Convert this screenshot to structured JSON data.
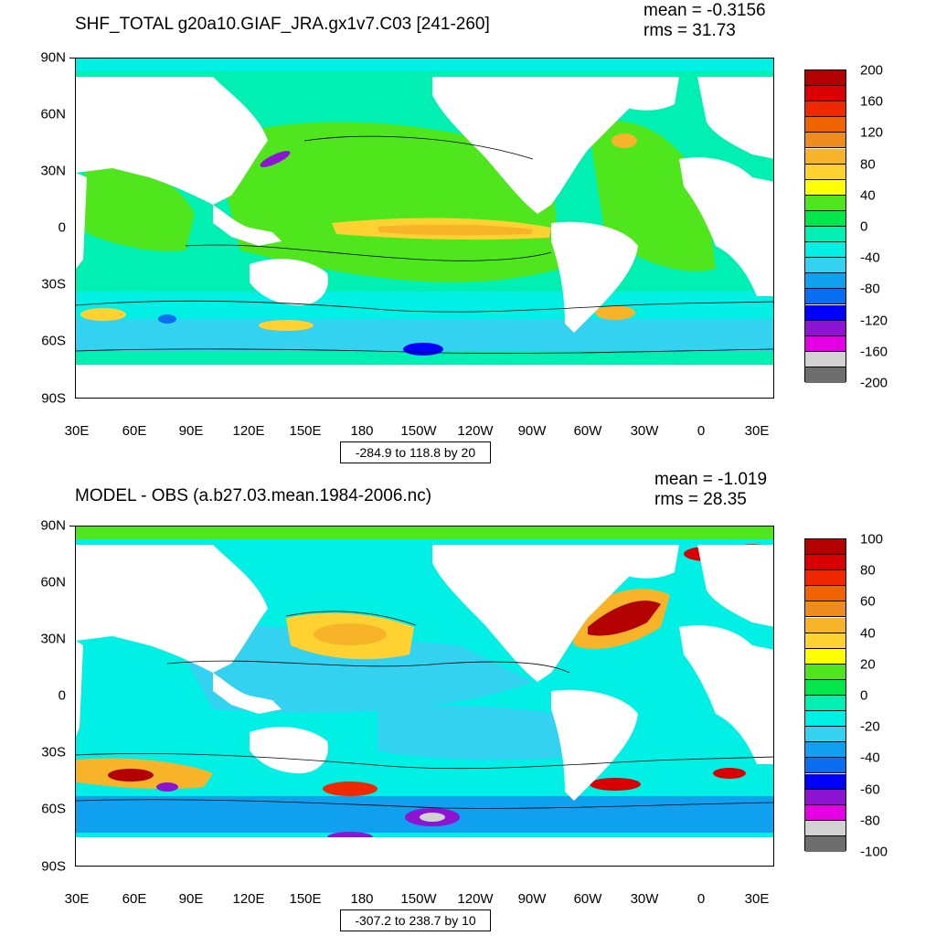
{
  "panels": [
    {
      "title": "SHF_TOTAL g20a10.GIAF_JRA.gx1v7.C03 [241-260]",
      "mean": "mean = -0.3156",
      "rms": "rms = 31.73",
      "range_text": "-284.9 to 118.8 by 20",
      "colorbar_labels": [
        "200",
        "160",
        "120",
        "80",
        "40",
        "0",
        "-40",
        "-80",
        "-120",
        "-160",
        "-200"
      ]
    },
    {
      "title": "MODEL - OBS (a.b27.03.mean.1984-2006.nc)",
      "mean": "mean = -1.019",
      "rms": "rms = 28.35",
      "range_text": "-307.2 to 238.7 by 10",
      "colorbar_labels": [
        "100",
        "80",
        "60",
        "40",
        "20",
        "0",
        "-20",
        "-40",
        "-60",
        "-80",
        "-100"
      ]
    }
  ],
  "lat_labels": [
    "90N",
    "60N",
    "30N",
    "0",
    "30S",
    "60S",
    "90S"
  ],
  "lon_labels": [
    "30E",
    "60E",
    "90E",
    "120E",
    "150E",
    "180",
    "150W",
    "120W",
    "90W",
    "60W",
    "30W",
    "0",
    "30E"
  ],
  "colors": {
    "colorbar_top_to_bottom": [
      "#b30000",
      "#d80000",
      "#f02800",
      "#f06400",
      "#f08c1e",
      "#f8b428",
      "#ffd232",
      "#ffff00",
      "#50e61e",
      "#00e64b",
      "#00f0b4",
      "#00f0e6",
      "#32d2f0",
      "#0fa0f0",
      "#0a6ef0",
      "#0000ff",
      "#8c14d2",
      "#e600e6",
      "#d2d2d2",
      "#6e6e6e"
    ],
    "land": "#ffffff"
  }
}
